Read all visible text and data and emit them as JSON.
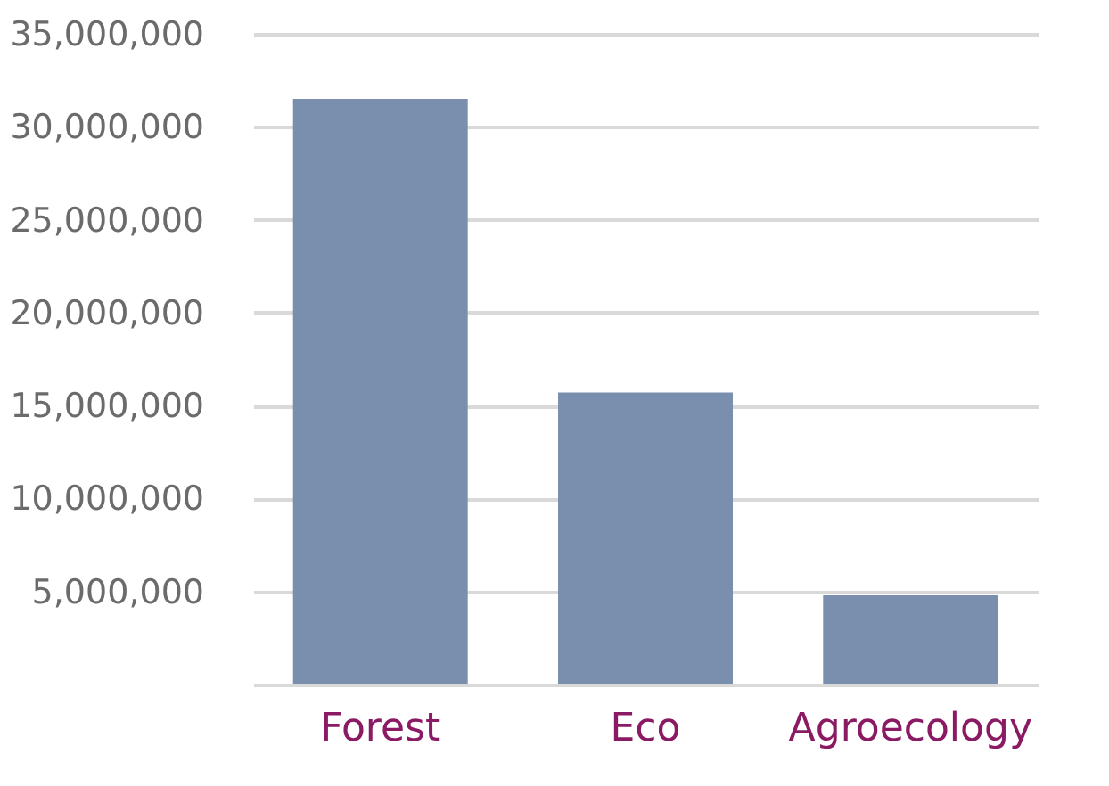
{
  "chart_data": {
    "type": "bar",
    "categories": [
      "Forest",
      "Eco",
      "Agroecology"
    ],
    "series": [
      {
        "color": "#7a8fae",
        "values": [
          31500000,
          15700000,
          4800000
        ]
      }
    ],
    "ylim": [
      0,
      35000000
    ],
    "yticks": [
      {
        "value": 0,
        "label": null
      },
      {
        "value": 5000000,
        "label": "5,000,000"
      },
      {
        "value": 10000000,
        "label": "10,000,000"
      },
      {
        "value": 15000000,
        "label": "15,000,000"
      },
      {
        "value": 20000000,
        "label": "20,000,000"
      },
      {
        "value": 25000000,
        "label": "25,000,000"
      },
      {
        "value": 30000000,
        "label": "30,000,000"
      },
      {
        "value": 35000000,
        "label": "35,000,000"
      }
    ],
    "grid": "y",
    "legend": false
  }
}
